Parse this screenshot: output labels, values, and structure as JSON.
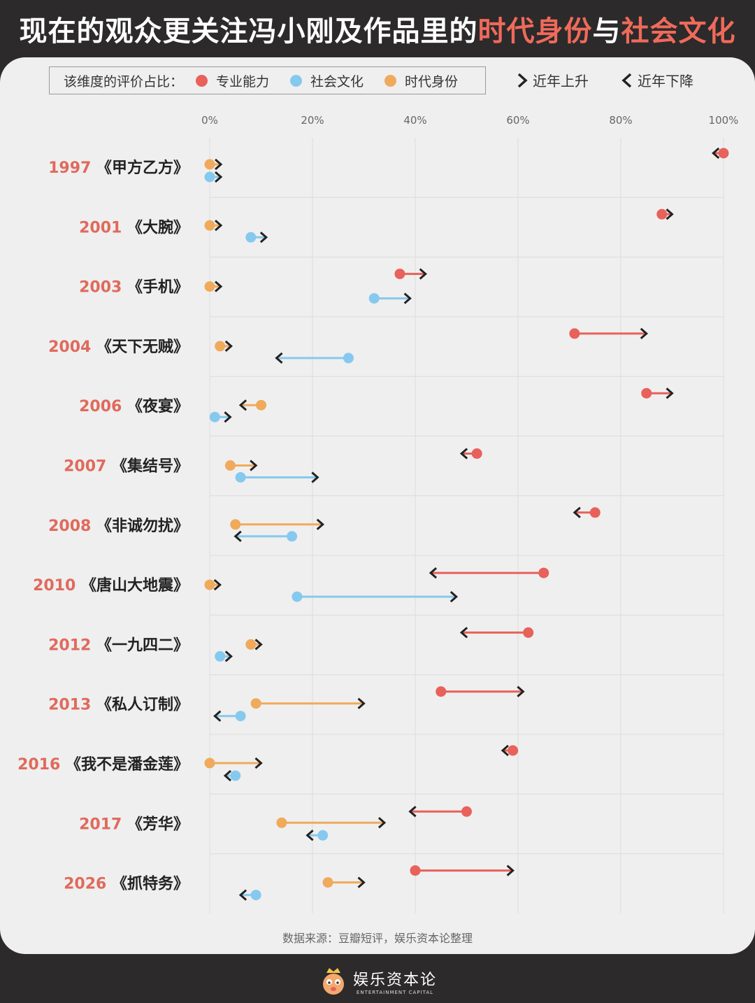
{
  "title": {
    "part1": "现在的观众更关注冯小刚及作品里的",
    "part2": "时代身份",
    "part3": "与",
    "part4": "社会文化"
  },
  "legend": {
    "lead": "该维度的评价占比：",
    "items": [
      {
        "label": "专业能力",
        "color": "#e8615a"
      },
      {
        "label": "社会文化",
        "color": "#86c9ef"
      },
      {
        "label": "时代身份",
        "color": "#f0aa5c"
      }
    ],
    "up": "近年上升",
    "down": "近年下降"
  },
  "source": "数据来源：豆瓣短评，娱乐资本论整理",
  "footer": {
    "name": "娱乐资本论",
    "sub": "ENTERTAINMENT CAPITAL"
  },
  "chart_data": {
    "type": "dumbbell",
    "x_ticks": [
      "0%",
      "20%",
      "40%",
      "60%",
      "80%",
      "100%"
    ],
    "xlim": [
      0,
      100
    ],
    "grid": true,
    "colors": {
      "专业能力": "#e8615a",
      "社会文化": "#86c9ef",
      "时代身份": "#f0aa5c"
    },
    "films": [
      {
        "year": "1997",
        "title": "《甲方乙方》",
        "专业能力": [
          100,
          98
        ],
        "时代身份": [
          0,
          0
        ],
        "社会文化": [
          0,
          0
        ]
      },
      {
        "year": "2001",
        "title": "《大腕》",
        "专业能力": [
          88,
          90
        ],
        "时代身份": [
          0,
          0
        ],
        "社会文化": [
          8,
          11
        ]
      },
      {
        "year": "2003",
        "title": "《手机》",
        "专业能力": [
          37,
          42
        ],
        "时代身份": [
          0,
          0
        ],
        "社会文化": [
          32,
          39
        ]
      },
      {
        "year": "2004",
        "title": "《天下无贼》",
        "专业能力": [
          71,
          85
        ],
        "时代身份": [
          2,
          2
        ],
        "社会文化": [
          27,
          13
        ]
      },
      {
        "year": "2006",
        "title": "《夜宴》",
        "专业能力": [
          85,
          90
        ],
        "时代身份": [
          10,
          6
        ],
        "社会文化": [
          1,
          4
        ]
      },
      {
        "year": "2007",
        "title": "《集结号》",
        "专业能力": [
          52,
          49
        ],
        "时代身份": [
          4,
          9
        ],
        "社会文化": [
          6,
          21
        ]
      },
      {
        "year": "2008",
        "title": "《非诚勿扰》",
        "专业能力": [
          75,
          71
        ],
        "时代身份": [
          5,
          22
        ],
        "社会文化": [
          16,
          5
        ]
      },
      {
        "year": "2010",
        "title": "《唐山大地震》",
        "专业能力": [
          65,
          43
        ],
        "时代身份": [
          0,
          2
        ],
        "社会文化": [
          17,
          48
        ]
      },
      {
        "year": "2012",
        "title": "《一九四二》",
        "专业能力": [
          62,
          49
        ],
        "时代身份": [
          8,
          10
        ],
        "社会文化": [
          2,
          3
        ]
      },
      {
        "year": "2013",
        "title": "《私人订制》",
        "专业能力": [
          45,
          61
        ],
        "时代身份": [
          9,
          30
        ],
        "社会文化": [
          6,
          1
        ]
      },
      {
        "year": "2016",
        "title": "《我不是潘金莲》",
        "专业能力": [
          59,
          57
        ],
        "时代身份": [
          0,
          10
        ],
        "社会文化": [
          5,
          3
        ]
      },
      {
        "year": "2017",
        "title": "《芳华》",
        "专业能力": [
          50,
          39
        ],
        "时代身份": [
          14,
          34
        ],
        "社会文化": [
          22,
          19
        ]
      },
      {
        "year": "2026",
        "title": "《抓特务》",
        "专业能力": [
          40,
          59
        ],
        "时代身份": [
          23,
          30
        ],
        "社会文化": [
          9,
          6
        ]
      }
    ]
  }
}
